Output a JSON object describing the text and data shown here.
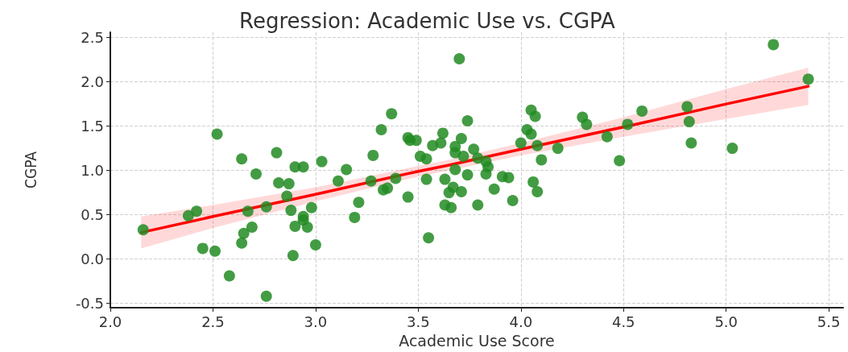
{
  "chart_data": {
    "type": "scatter",
    "title": "Regression: Academic Use vs. CGPA",
    "xlabel": "Academic Use Score",
    "ylabel": "CGPA",
    "xlim": [
      2.0,
      5.57
    ],
    "ylim": [
      -0.55,
      2.56
    ],
    "xticks": [
      {
        "value": 2,
        "label": "2.0"
      },
      2.5,
      {
        "value": 3,
        "label": "3.0"
      },
      3.5,
      {
        "value": 4,
        "label": "4.0"
      },
      4.5,
      {
        "value": 5,
        "label": "5.0"
      },
      5.5
    ],
    "yticks": [
      -0.5,
      {
        "value": 0,
        "label": "0.0"
      },
      0.5,
      {
        "value": 1,
        "label": "1.0"
      },
      1.5,
      {
        "value": 2,
        "label": "2.0"
      },
      2.5
    ],
    "grid": true,
    "series": [
      {
        "marker": "circle",
        "color": "#228b22",
        "x": [
          2.16,
          2.38,
          2.42,
          2.45,
          2.51,
          2.52,
          2.58,
          2.64,
          2.65,
          2.64,
          2.67,
          2.69,
          2.71,
          2.76,
          2.76,
          2.81,
          2.82,
          2.87,
          2.86,
          2.88,
          2.89,
          2.9,
          2.94,
          2.94,
          2.94,
          2.9,
          2.96,
          2.98,
          3.0,
          3.03,
          3.11,
          3.15,
          3.19,
          3.21,
          3.27,
          3.28,
          3.32,
          3.33,
          3.35,
          3.37,
          3.39,
          3.45,
          3.45,
          3.46,
          3.49,
          3.51,
          3.54,
          3.54,
          3.55,
          3.57,
          3.61,
          3.62,
          3.63,
          3.63,
          3.65,
          3.66,
          3.67,
          3.68,
          3.68,
          3.68,
          3.7,
          3.71,
          3.71,
          3.72,
          3.74,
          3.74,
          3.77,
          3.79,
          3.79,
          3.83,
          3.84,
          3.83,
          3.87,
          3.91,
          3.94,
          3.96,
          4.0,
          4.03,
          4.05,
          4.05,
          4.06,
          4.07,
          4.08,
          4.08,
          4.1,
          4.18,
          4.3,
          4.32,
          4.42,
          4.48,
          4.52,
          4.59,
          4.81,
          4.82,
          4.83,
          5.03,
          5.23,
          5.4
        ],
        "values": [
          0.33,
          0.49,
          0.54,
          0.12,
          0.09,
          1.41,
          -0.19,
          1.13,
          0.29,
          0.18,
          0.54,
          0.36,
          0.96,
          -0.42,
          0.59,
          1.2,
          0.86,
          0.85,
          0.71,
          0.55,
          0.04,
          1.04,
          1.04,
          0.48,
          0.44,
          0.37,
          0.36,
          0.58,
          0.16,
          1.1,
          0.88,
          1.01,
          0.47,
          0.64,
          0.88,
          1.17,
          1.46,
          0.78,
          0.8,
          1.64,
          0.91,
          0.7,
          1.37,
          1.34,
          1.34,
          1.16,
          1.13,
          0.9,
          0.24,
          1.28,
          1.31,
          1.42,
          0.61,
          0.9,
          0.75,
          0.58,
          0.81,
          1.01,
          1.27,
          1.2,
          2.26,
          1.36,
          0.76,
          1.16,
          0.95,
          1.56,
          1.24,
          1.14,
          0.61,
          1.1,
          1.04,
          0.96,
          0.79,
          0.93,
          0.92,
          0.66,
          1.31,
          1.46,
          1.68,
          1.41,
          0.87,
          1.61,
          1.28,
          0.76,
          1.12,
          1.25,
          1.6,
          1.52,
          1.38,
          1.11,
          1.52,
          1.67,
          1.72,
          1.55,
          1.31,
          1.25,
          2.42,
          2.03
        ]
      },
      {
        "type": "line",
        "color": "#ff0000",
        "x": [
          2.15,
          2.5,
          3.0,
          3.5,
          3.65,
          4.0,
          4.5,
          5.0,
          5.4
        ],
        "values": [
          0.3,
          0.48,
          0.73,
          0.99,
          1.06,
          1.24,
          1.49,
          1.75,
          1.95
        ],
        "lower": [
          0.12,
          0.35,
          0.65,
          0.93,
          1.0,
          1.17,
          1.38,
          1.58,
          1.74
        ],
        "upper": [
          0.48,
          0.61,
          0.81,
          1.05,
          1.12,
          1.31,
          1.6,
          1.92,
          2.16
        ]
      }
    ]
  }
}
